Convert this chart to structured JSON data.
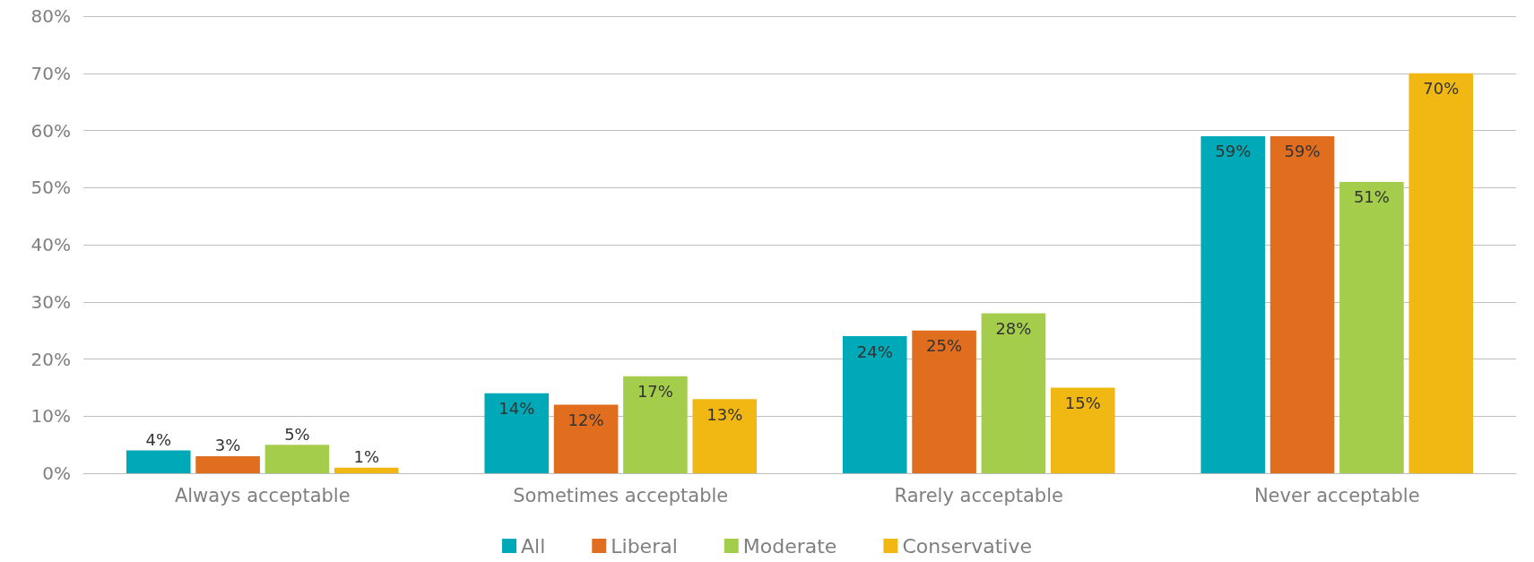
{
  "chart_data": {
    "type": "bar",
    "categories": [
      "Always acceptable",
      "Sometimes acceptable",
      "Rarely acceptable",
      "Never acceptable"
    ],
    "series": [
      {
        "name": "All",
        "color": "#00a9b8",
        "values": [
          4,
          14,
          24,
          59
        ],
        "value_labels": [
          "4%",
          "14%",
          "24%",
          "59%"
        ]
      },
      {
        "name": "Liberal",
        "color": "#e06e1e",
        "values": [
          3,
          12,
          25,
          59
        ],
        "value_labels": [
          "3%",
          "12%",
          "25%",
          "59%"
        ]
      },
      {
        "name": "Moderate",
        "color": "#a5cd4c",
        "values": [
          5,
          17,
          28,
          51
        ],
        "value_labels": [
          "5%",
          "17%",
          "28%",
          "51%"
        ]
      },
      {
        "name": "Conservative",
        "color": "#f1b814",
        "values": [
          1,
          13,
          15,
          70
        ],
        "value_labels": [
          "1%",
          "13%",
          "15%",
          "70%"
        ]
      }
    ],
    "ylim": [
      0,
      80
    ],
    "yticks": [
      {
        "value": 0,
        "label": "0%"
      },
      {
        "value": 10,
        "label": "10%"
      },
      {
        "value": 20,
        "label": "20%"
      },
      {
        "value": 30,
        "label": "30%"
      },
      {
        "value": 40,
        "label": "40%"
      },
      {
        "value": 50,
        "label": "50%"
      },
      {
        "value": 60,
        "label": "60%"
      },
      {
        "value": 70,
        "label": "70%"
      },
      {
        "value": 80,
        "label": "80%"
      }
    ],
    "grid": "y",
    "legend": "bottom"
  }
}
